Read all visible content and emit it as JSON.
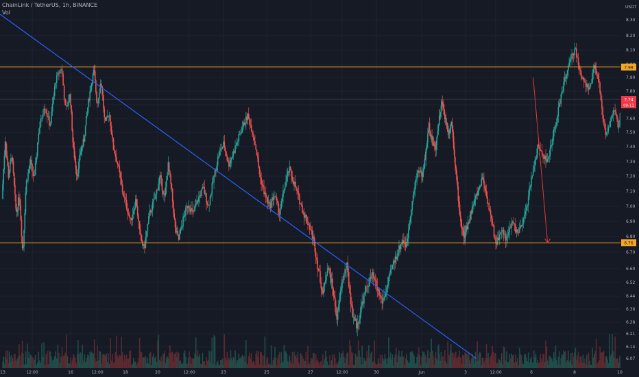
{
  "header": {
    "title": "ChainLink / TetherUS, 1h, BINANCE",
    "vol_label": "Vol"
  },
  "colors": {
    "background": "#161a25",
    "up": "#26a69a",
    "down": "#ef5350",
    "support_resistance": "#f5a623",
    "trendline": "#2962ff",
    "projection_arrow": "#e53935",
    "current_price_badge": "#f23645",
    "grid": "#1f2330",
    "axis_text": "#b2b5be"
  },
  "chart_data": {
    "type": "candlestick",
    "symbol": "ChainLink / TetherUS",
    "interval": "1h",
    "exchange": "BINANCE",
    "currency": "USDT",
    "ylim": [
      6.05,
      8.38
    ],
    "y_ticks": [
      "8.30",
      "8.20",
      "8.10",
      "8.00",
      "7.90",
      "7.80",
      "7.70",
      "7.60",
      "7.50",
      "7.40",
      "7.30",
      "7.20",
      "7.10",
      "7.00",
      "6.90",
      "6.80",
      "6.70",
      "6.60",
      "6.52",
      "6.44",
      "6.36",
      "6.28",
      "6.21",
      "6.14",
      "6.07"
    ],
    "x_ticks": [
      "13",
      "12:00",
      "16",
      "12:00",
      "18",
      "20",
      "12:00",
      "23",
      "25",
      "27",
      "12:00",
      "30",
      "Jun",
      "3",
      "12:00",
      "6",
      "8",
      "10"
    ],
    "horizontal_levels": [
      {
        "price": 7.98,
        "label": "7.98"
      },
      {
        "price": 6.76,
        "label": "6.76"
      }
    ],
    "current_price": {
      "label": "7.74",
      "countdown": "09:11",
      "price": 7.74
    },
    "trendline": {
      "from": {
        "x": "12 May 17:00",
        "y": 8.55
      },
      "to": {
        "x": "4 Jun 13:00",
        "y": 6.07
      }
    },
    "projection_arrow": {
      "from": {
        "x": "7 Jun 02:00",
        "y": 7.9
      },
      "to": {
        "x": "7 Jun 18:00",
        "y": 6.76
      }
    },
    "path": [
      [
        0.0,
        7.05
      ],
      [
        1.5,
        7.45
      ],
      [
        3.0,
        7.2
      ],
      [
        4.5,
        7.35
      ],
      [
        6.5,
        6.95
      ],
      [
        8.0,
        7.08
      ],
      [
        9.5,
        6.68
      ],
      [
        11.0,
        7.15
      ],
      [
        13.0,
        7.3
      ],
      [
        14.5,
        7.18
      ],
      [
        16.0,
        7.5
      ],
      [
        18.0,
        7.7
      ],
      [
        20.0,
        7.55
      ],
      [
        22.0,
        7.88
      ],
      [
        24.0,
        7.98
      ],
      [
        25.5,
        7.65
      ],
      [
        27.0,
        7.78
      ],
      [
        28.5,
        7.4
      ],
      [
        30.5,
        7.2
      ],
      [
        32.0,
        7.35
      ],
      [
        34.0,
        7.45
      ],
      [
        35.5,
        7.65
      ],
      [
        37.0,
        7.8
      ],
      [
        39.0,
        7.96
      ],
      [
        40.5,
        7.7
      ],
      [
        42.0,
        7.88
      ],
      [
        43.5,
        7.55
      ],
      [
        45.0,
        7.65
      ],
      [
        46.5,
        7.4
      ],
      [
        48.0,
        7.3
      ],
      [
        50.0,
        7.1
      ],
      [
        51.5,
        7.0
      ],
      [
        53.0,
        6.9
      ],
      [
        55.0,
        7.05
      ],
      [
        56.5,
        6.8
      ],
      [
        58.0,
        6.72
      ],
      [
        60.0,
        6.95
      ],
      [
        62.0,
        7.05
      ],
      [
        64.0,
        7.2
      ],
      [
        66.0,
        7.05
      ],
      [
        67.5,
        7.28
      ],
      [
        69.0,
        7.1
      ],
      [
        70.5,
        6.85
      ],
      [
        72.0,
        6.78
      ],
      [
        74.0,
        6.92
      ],
      [
        76.0,
        7.02
      ],
      [
        78.0,
        6.95
      ],
      [
        80.0,
        7.05
      ],
      [
        82.0,
        7.12
      ],
      [
        84.0,
        7.0
      ],
      [
        86.0,
        7.18
      ],
      [
        88.0,
        7.35
      ],
      [
        90.0,
        7.42
      ],
      [
        92.0,
        7.28
      ],
      [
        94.0,
        7.36
      ],
      [
        96.0,
        7.45
      ],
      [
        98.0,
        7.55
      ],
      [
        100.0,
        7.62
      ],
      [
        102.0,
        7.5
      ],
      [
        103.5,
        7.38
      ],
      [
        105.0,
        7.2
      ],
      [
        107.0,
        7.08
      ],
      [
        109.0,
        7.0
      ],
      [
        111.0,
        7.08
      ],
      [
        113.0,
        6.95
      ],
      [
        115.0,
        7.12
      ],
      [
        117.0,
        7.25
      ],
      [
        119.0,
        7.15
      ],
      [
        121.0,
        7.05
      ],
      [
        123.0,
        6.95
      ],
      [
        125.0,
        6.88
      ],
      [
        127.0,
        6.78
      ],
      [
        129.0,
        6.6
      ],
      [
        131.0,
        6.45
      ],
      [
        133.0,
        6.62
      ],
      [
        135.0,
        6.5
      ],
      [
        137.0,
        6.3
      ],
      [
        139.0,
        6.52
      ],
      [
        141.0,
        6.62
      ],
      [
        143.0,
        6.35
      ],
      [
        145.0,
        6.25
      ],
      [
        147.0,
        6.4
      ],
      [
        149.0,
        6.5
      ],
      [
        151.0,
        6.56
      ],
      [
        153.0,
        6.48
      ],
      [
        155.0,
        6.4
      ],
      [
        157.0,
        6.5
      ],
      [
        159.0,
        6.62
      ],
      [
        161.0,
        6.7
      ],
      [
        163.0,
        6.78
      ],
      [
        164.5,
        6.74
      ],
      [
        166.0,
        6.95
      ],
      [
        167.5,
        7.1
      ],
      [
        169.0,
        7.25
      ],
      [
        171.0,
        7.2
      ],
      [
        173.0,
        7.35
      ],
      [
        175.0,
        7.55
      ],
      [
        177.0,
        7.45
      ],
      [
        179.0,
        7.38
      ],
      [
        181.0,
        7.58
      ],
      [
        183.0,
        7.72
      ],
      [
        185.0,
        7.6
      ],
      [
        187.0,
        7.5
      ],
      [
        189.0,
        7.58
      ],
      [
        191.0,
        7.3
      ],
      [
        193.0,
        7.05
      ],
      [
        195.0,
        6.85
      ],
      [
        197.0,
        6.8
      ],
      [
        199.0,
        6.92
      ],
      [
        201.0,
        7.02
      ],
      [
        203.0,
        7.1
      ],
      [
        205.0,
        7.2
      ],
      [
        207.0,
        7.05
      ],
      [
        209.0,
        6.9
      ],
      [
        211.0,
        6.75
      ],
      [
        213.0,
        6.85
      ],
      [
        215.0,
        6.78
      ],
      [
        217.0,
        6.9
      ],
      [
        219.0,
        6.82
      ],
      [
        221.0,
        6.88
      ],
      [
        223.0,
        7.05
      ],
      [
        225.0,
        7.25
      ],
      [
        227.0,
        7.4
      ],
      [
        229.0,
        7.35
      ],
      [
        231.0,
        7.3
      ],
      [
        233.0,
        7.45
      ],
      [
        235.0,
        7.62
      ],
      [
        237.0,
        7.8
      ],
      [
        239.0,
        7.95
      ],
      [
        241.0,
        8.05
      ],
      [
        242.5,
        8.12
      ],
      [
        244.0,
        7.95
      ],
      [
        246.0,
        7.88
      ],
      [
        248.0,
        7.8
      ],
      [
        250.0,
        7.98
      ],
      [
        251.5,
        7.9
      ],
      [
        253.0,
        7.65
      ],
      [
        254.5,
        7.5
      ],
      [
        256.0,
        7.55
      ],
      [
        258.0,
        7.68
      ],
      [
        259.5,
        7.52
      ],
      [
        261.0,
        7.74
      ]
    ]
  }
}
